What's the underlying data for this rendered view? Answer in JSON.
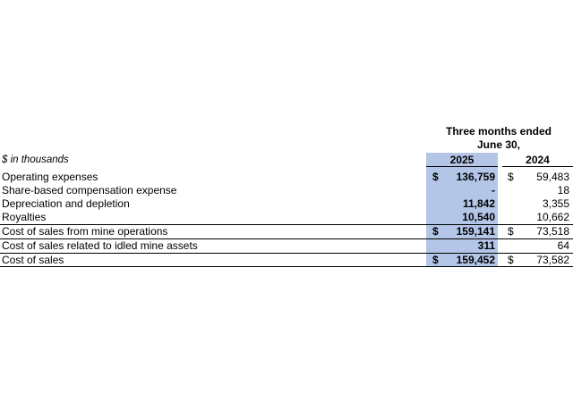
{
  "table": {
    "period_header_line1": "Three months ended",
    "period_header_line2": "June 30,",
    "unit_label": "$ in thousands",
    "columns": [
      "2025",
      "2024"
    ],
    "highlight_color": "#b4c6e7",
    "rows": [
      {
        "label": "Operating expenses",
        "cur_2025": "$",
        "val_2025": "136,759",
        "cur_2024": "$",
        "val_2024": "59,483"
      },
      {
        "label": "Share-based compensation expense",
        "cur_2025": "",
        "val_2025": "-",
        "cur_2024": "",
        "val_2024": "18"
      },
      {
        "label": "Depreciation and depletion",
        "cur_2025": "",
        "val_2025": "11,842",
        "cur_2024": "",
        "val_2024": "3,355"
      },
      {
        "label": "Royalties",
        "cur_2025": "",
        "val_2025": "10,540",
        "cur_2024": "",
        "val_2024": "10,662"
      },
      {
        "label": "Cost of sales from mine operations",
        "cur_2025": "$",
        "val_2025": "159,141",
        "cur_2024": "$",
        "val_2024": "73,518"
      },
      {
        "label": "Cost of sales related to idled mine assets",
        "cur_2025": "",
        "val_2025": "311",
        "cur_2024": "",
        "val_2024": "64"
      },
      {
        "label": "Cost of sales",
        "cur_2025": "$",
        "val_2025": "159,452",
        "cur_2024": "$",
        "val_2024": "73,582"
      }
    ]
  }
}
